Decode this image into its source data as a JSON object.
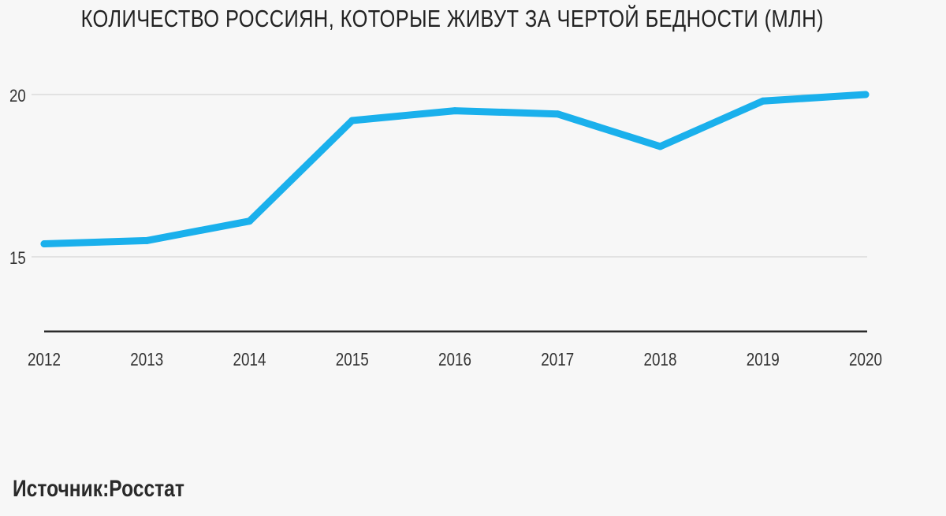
{
  "chart_data": {
    "type": "line",
    "title": "КОЛИЧЕСТВО РОССИЯН, КОТОРЫЕ ЖИВУТ ЗА ЧЕРТОЙ БЕДНОСТИ (МЛН)",
    "xlabel": "",
    "ylabel": "",
    "categories": [
      "2012",
      "2013",
      "2014",
      "2015",
      "2016",
      "2017",
      "2018",
      "2019",
      "2020"
    ],
    "series": [
      {
        "values": [
          15.4,
          15.5,
          16.1,
          19.2,
          19.5,
          19.4,
          18.4,
          19.8,
          20.0
        ]
      }
    ],
    "yticks": [
      "20",
      "15"
    ],
    "ytick_values": [
      20,
      15
    ],
    "ylim": [
      12.7,
      21.0
    ],
    "grid": true,
    "legend": "none",
    "colors": {
      "line": "#1ab0ec",
      "grid": "#dcdcdc",
      "axis": "#2b2b2b",
      "text": "#333333"
    }
  },
  "source": {
    "label": "Источник:",
    "value": "Росстат"
  }
}
